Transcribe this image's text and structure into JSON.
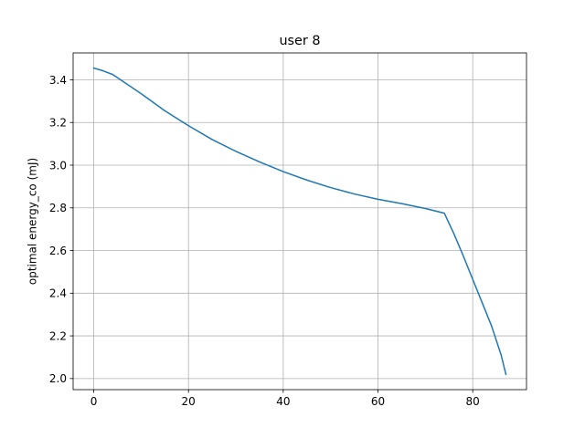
{
  "chart_data": {
    "type": "line",
    "title": "user 8",
    "xlabel": "",
    "ylabel": "optimal energy_co (mJ)",
    "xlim": [
      -4.35,
      91.35
    ],
    "ylim": [
      1.948,
      3.526
    ],
    "xticks": [
      0,
      20,
      40,
      60,
      80
    ],
    "xtick_labels": [
      "0",
      "20",
      "40",
      "60",
      "80"
    ],
    "yticks": [
      2.0,
      2.2,
      2.4,
      2.6,
      2.8,
      3.0,
      3.2,
      3.4
    ],
    "ytick_labels": [
      "2.0",
      "2.2",
      "2.4",
      "2.6",
      "2.8",
      "3.0",
      "3.2",
      "3.4"
    ],
    "grid": true,
    "series": [
      {
        "name": "energy_co",
        "color": "#1f77b4",
        "x": [
          0,
          2,
          4,
          6,
          8,
          10,
          15,
          20,
          25,
          30,
          35,
          40,
          45,
          50,
          55,
          60,
          65,
          70,
          74,
          76,
          78,
          80,
          82,
          84,
          86,
          87
        ],
        "y": [
          3.455,
          3.442,
          3.425,
          3.395,
          3.365,
          3.335,
          3.255,
          3.185,
          3.12,
          3.065,
          3.015,
          2.97,
          2.93,
          2.895,
          2.865,
          2.84,
          2.82,
          2.797,
          2.775,
          2.68,
          2.575,
          2.465,
          2.355,
          2.245,
          2.11,
          2.02
        ]
      }
    ]
  }
}
